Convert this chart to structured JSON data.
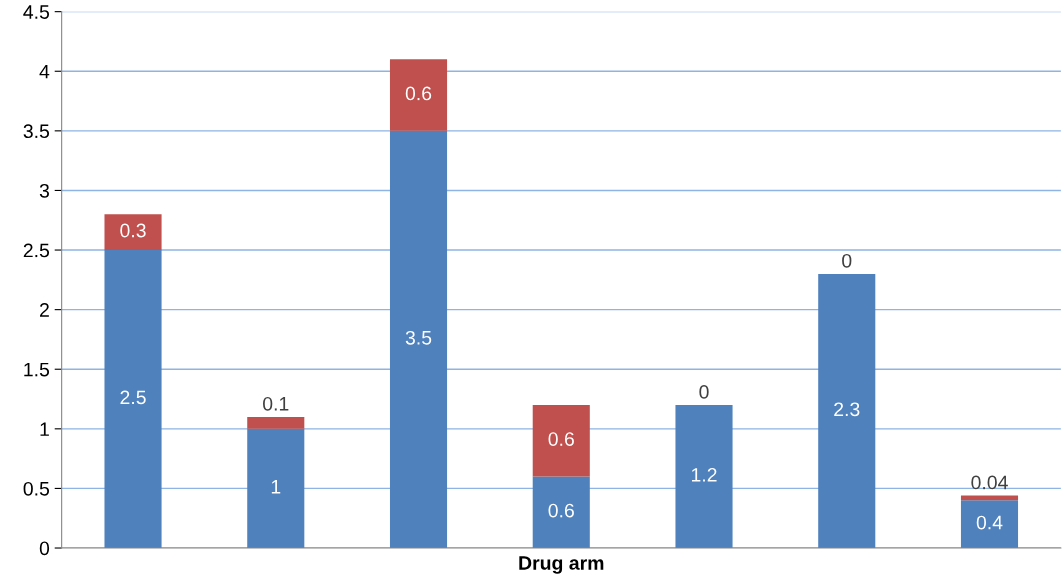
{
  "chart_data": {
    "type": "bar",
    "stacked": true,
    "xlabel": "Drug arm",
    "categories": [
      null,
      null,
      null,
      null,
      null,
      null,
      null
    ],
    "series": [
      {
        "color": "#4f81bd",
        "values": [
          2.5,
          1,
          3.5,
          0.6,
          1.2,
          2.3,
          0.4
        ]
      },
      {
        "color": "#c0504d",
        "values": [
          0.3,
          0.1,
          0.6,
          0.6,
          0,
          0,
          0.04
        ]
      }
    ],
    "ylim": [
      0,
      4.5
    ],
    "yticks": [
      0,
      0.5,
      1,
      1.5,
      2,
      2.5,
      3,
      3.5,
      4,
      4.5
    ],
    "grid": "y",
    "data_labels": true
  }
}
